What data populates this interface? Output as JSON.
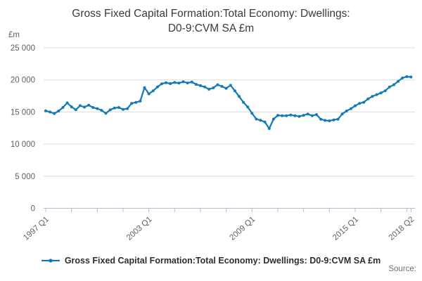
{
  "title": {
    "line1": "Gross Fixed Capital Formation:Total Economy: Dwellings:",
    "line2": "D0-9:CVM SA £m"
  },
  "y_axis": {
    "unit_label": "£m",
    "tick_labels": [
      "0",
      "5 000",
      "10 000",
      "15 000",
      "20 000",
      "25 000"
    ]
  },
  "x_axis": {
    "tick_labels": [
      "1997 Q1",
      "2003 Q1",
      "2009 Q1",
      "2015 Q1",
      "2018 Q2"
    ]
  },
  "legend": {
    "marker": "line-with-dot",
    "label": "Gross Fixed Capital Formation:Total Economy: Dwellings: D0-9:CVM SA £m"
  },
  "source": {
    "label": "Source:"
  },
  "colors": {
    "line": "#1579b8",
    "gridline": "#dcdcdc",
    "axis": "#b4bdd6",
    "title_text": "#3a3a3a",
    "tick_text": "#5f5f5f"
  },
  "chart_data": {
    "type": "line",
    "title": "Gross Fixed Capital Formation:Total Economy: Dwellings: D0-9:CVM SA £m",
    "ylabel": "£m",
    "ylim": [
      0,
      25000
    ],
    "y_step": 5000,
    "grid": "horizontal",
    "legend_position": "bottom",
    "frequency": "quarterly",
    "x_start": "1997 Q1",
    "x_end": "2018 Q2",
    "x_tick_indices": [
      0,
      24,
      48,
      72,
      85
    ],
    "x_tick_labels": [
      "1997 Q1",
      "2003 Q1",
      "2009 Q1",
      "2015 Q1",
      "2018 Q2"
    ],
    "minor_tick_every_quarters": 6,
    "series": [
      {
        "name": "Gross Fixed Capital Formation:Total Economy: Dwellings: D0-9:CVM SA £m",
        "values": [
          15180,
          15000,
          14760,
          15150,
          15700,
          16420,
          15800,
          15350,
          15980,
          15760,
          16060,
          15700,
          15520,
          15260,
          14790,
          15330,
          15620,
          15700,
          15410,
          15520,
          16350,
          16500,
          16700,
          18800,
          17820,
          18300,
          18900,
          19400,
          19550,
          19420,
          19600,
          19500,
          19700,
          19520,
          19660,
          19300,
          19100,
          18900,
          18550,
          18760,
          19240,
          18980,
          18690,
          19160,
          18300,
          17420,
          16510,
          15780,
          14800,
          13900,
          13700,
          13450,
          12420,
          13900,
          14480,
          14420,
          14420,
          14530,
          14420,
          14310,
          14490,
          14670,
          14420,
          14600,
          13870,
          13690,
          13620,
          13760,
          13870,
          14690,
          15150,
          15510,
          15960,
          16330,
          16510,
          17050,
          17420,
          17700,
          17960,
          18300,
          18900,
          19240,
          19780,
          20300,
          20500,
          20450
        ]
      }
    ]
  }
}
